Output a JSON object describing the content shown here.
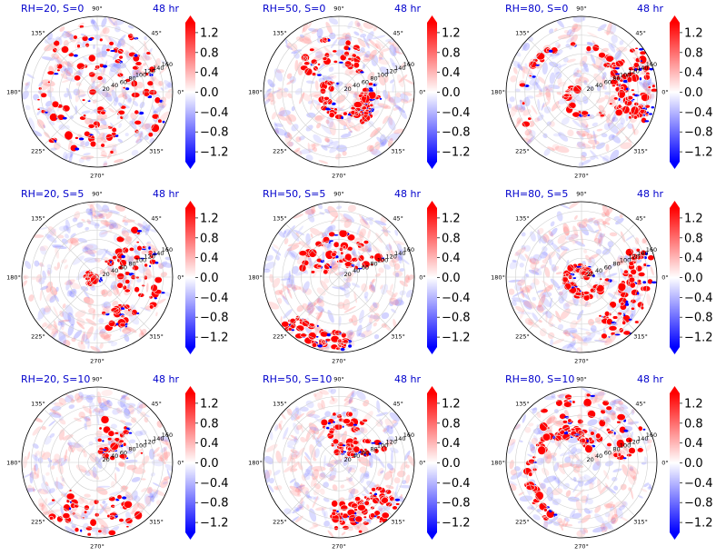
{
  "figure": {
    "colormap": "bwr",
    "colors": {
      "negative": "#0000ff",
      "zero": "#ffffff",
      "positive": "#ff0000",
      "panel_title": "#0000cc",
      "grid": "#d0d0d0"
    }
  },
  "chart_data": [
    {
      "type": "heatmap",
      "subtype": "polar",
      "title": "RH=20, S=0",
      "time_label": "48 hr",
      "angle_ticks": [
        "0°",
        "45°",
        "90°",
        "135°",
        "180°",
        "225°",
        "270°",
        "315°"
      ],
      "radial_ticks": [
        "20",
        "40",
        "60",
        "80",
        "100",
        "120",
        "140",
        "160"
      ],
      "colorbar": {
        "ticks": [
          "1.2",
          "0.8",
          "0.4",
          "0.0",
          "−0.4",
          "−0.8",
          "−1.2"
        ],
        "range": [
          -1.4,
          1.4
        ],
        "extend": "both"
      },
      "colormap": "bwr"
    },
    {
      "type": "heatmap",
      "subtype": "polar",
      "title": "RH=50, S=0",
      "time_label": "48 hr",
      "angle_ticks": [
        "0°",
        "45°",
        "90°",
        "135°",
        "180°",
        "225°",
        "270°",
        "315°"
      ],
      "radial_ticks": [
        "20",
        "40",
        "60",
        "80",
        "100",
        "120",
        "140",
        "160"
      ],
      "colorbar": {
        "ticks": [
          "1.2",
          "0.8",
          "0.4",
          "0.0",
          "−0.4",
          "−0.8",
          "−1.2"
        ],
        "range": [
          -1.4,
          1.4
        ],
        "extend": "both"
      },
      "colormap": "bwr"
    },
    {
      "type": "heatmap",
      "subtype": "polar",
      "title": "RH=80, S=0",
      "time_label": "48 hr",
      "angle_ticks": [
        "0°",
        "45°",
        "90°",
        "135°",
        "180°",
        "225°",
        "270°",
        "315°"
      ],
      "radial_ticks": [
        "20",
        "40",
        "60",
        "80",
        "100",
        "120",
        "140",
        "160"
      ],
      "colorbar": {
        "ticks": [
          "1.2",
          "0.8",
          "0.4",
          "0.0",
          "−0.4",
          "−0.8",
          "−1.2"
        ],
        "range": [
          -1.4,
          1.4
        ],
        "extend": "both"
      },
      "colormap": "bwr"
    },
    {
      "type": "heatmap",
      "subtype": "polar",
      "title": "RH=20, S=5",
      "time_label": "48 hr",
      "angle_ticks": [
        "0°",
        "45°",
        "90°",
        "135°",
        "180°",
        "225°",
        "270°",
        "315°"
      ],
      "radial_ticks": [
        "20",
        "40",
        "60",
        "80",
        "100",
        "120",
        "140",
        "160"
      ],
      "colorbar": {
        "ticks": [
          "1.2",
          "0.8",
          "0.4",
          "0.0",
          "−0.4",
          "−0.8",
          "−1.2"
        ],
        "range": [
          -1.4,
          1.4
        ],
        "extend": "both"
      },
      "colormap": "bwr"
    },
    {
      "type": "heatmap",
      "subtype": "polar",
      "title": "RH=50, S=5",
      "time_label": "48 hr",
      "angle_ticks": [
        "0°",
        "45°",
        "90°",
        "135°",
        "180°",
        "225°",
        "270°",
        "315°"
      ],
      "radial_ticks": [
        "20",
        "40",
        "60",
        "80",
        "100",
        "120",
        "140",
        "160"
      ],
      "colorbar": {
        "ticks": [
          "1.2",
          "0.8",
          "0.4",
          "0.0",
          "−0.4",
          "−0.8",
          "−1.2"
        ],
        "range": [
          -1.4,
          1.4
        ],
        "extend": "both"
      },
      "colormap": "bwr"
    },
    {
      "type": "heatmap",
      "subtype": "polar",
      "title": "RH=80, S=5",
      "time_label": "48 hr",
      "angle_ticks": [
        "0°",
        "45°",
        "90°",
        "135°",
        "180°",
        "225°",
        "270°",
        "315°"
      ],
      "radial_ticks": [
        "20",
        "40",
        "60",
        "80",
        "100",
        "120",
        "140",
        "160"
      ],
      "colorbar": {
        "ticks": [
          "1.2",
          "0.8",
          "0.4",
          "0.0",
          "−0.4",
          "−0.8",
          "−1.2"
        ],
        "range": [
          -1.4,
          1.4
        ],
        "extend": "both"
      },
      "colormap": "bwr"
    },
    {
      "type": "heatmap",
      "subtype": "polar",
      "title": "RH=20, S=10",
      "time_label": "48 hr",
      "angle_ticks": [
        "0°",
        "45°",
        "90°",
        "135°",
        "180°",
        "225°",
        "270°",
        "315°"
      ],
      "radial_ticks": [
        "20",
        "40",
        "60",
        "80",
        "100",
        "120",
        "140",
        "160"
      ],
      "colorbar": {
        "ticks": [
          "1.2",
          "0.8",
          "0.4",
          "0.0",
          "−0.4",
          "−0.8",
          "−1.2"
        ],
        "range": [
          -1.4,
          1.4
        ],
        "extend": "both"
      },
      "colormap": "bwr"
    },
    {
      "type": "heatmap",
      "subtype": "polar",
      "title": "RH=50, S=10",
      "time_label": "48 hr",
      "angle_ticks": [
        "0°",
        "45°",
        "90°",
        "135°",
        "180°",
        "225°",
        "270°",
        "315°"
      ],
      "radial_ticks": [
        "20",
        "40",
        "60",
        "80",
        "100",
        "120",
        "140",
        "160"
      ],
      "colorbar": {
        "ticks": [
          "1.2",
          "0.8",
          "0.4",
          "0.0",
          "−0.4",
          "−0.8",
          "−1.2"
        ],
        "range": [
          -1.4,
          1.4
        ],
        "extend": "both"
      },
      "colormap": "bwr"
    },
    {
      "type": "heatmap",
      "subtype": "polar",
      "title": "RH=80, S=10",
      "time_label": "48 hr",
      "angle_ticks": [
        "0°",
        "45°",
        "90°",
        "135°",
        "180°",
        "225°",
        "270°",
        "315°"
      ],
      "radial_ticks": [
        "20",
        "40",
        "60",
        "80",
        "100",
        "120",
        "140",
        "160"
      ],
      "colorbar": {
        "ticks": [
          "1.2",
          "0.8",
          "0.4",
          "0.0",
          "−0.4",
          "−0.8",
          "−1.2"
        ],
        "range": [
          -1.4,
          1.4
        ],
        "extend": "both"
      },
      "colormap": "bwr"
    }
  ]
}
